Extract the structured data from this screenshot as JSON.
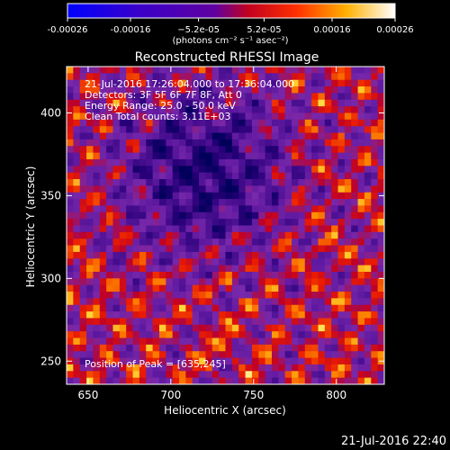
{
  "chart_data": {
    "type": "heatmap",
    "title": "Reconstructed RHESSI Image",
    "xlabel": "Heliocentric X (arcsec)",
    "ylabel": "Heliocentric Y (arcsec)",
    "xlim": [
      637,
      829
    ],
    "ylim": [
      236,
      428
    ],
    "x_ticks": [
      650,
      700,
      750,
      800
    ],
    "y_ticks": [
      250,
      300,
      350,
      400
    ],
    "colorbar": {
      "min": -0.00026,
      "max": 0.00026,
      "colormap": "rhessi-blue-purple-red-yellow-white",
      "tick_values": [
        -0.00026,
        -0.00016,
        -5.2e-05,
        5.2e-05,
        0.00016,
        0.00026
      ],
      "tick_labels": [
        "-0.00026",
        "-0.00016",
        "−5.2e-05",
        "5.2e-05",
        "0.00016",
        "0.00026"
      ],
      "unit_label": "(photons cm⁻² s⁻¹ asec⁻²)"
    },
    "annotations": [
      "21-Jul-2016 17:26:04.000 to 17:36:04.000",
      "Detectors: 3F 5F 6F 7F 8F, Att 0",
      "Energy Range: 25.0 - 50.0 keV",
      "Clean     Total counts: 3.11E+03"
    ],
    "peak_label": "Position of Peak = [635,245]",
    "peak_position": [
      635,
      245
    ],
    "grid": false
  },
  "footer": {
    "timestamp": "21-Jul-2016 22:40"
  },
  "colors": {
    "background": "#000000",
    "foreground": "#ffffff"
  }
}
